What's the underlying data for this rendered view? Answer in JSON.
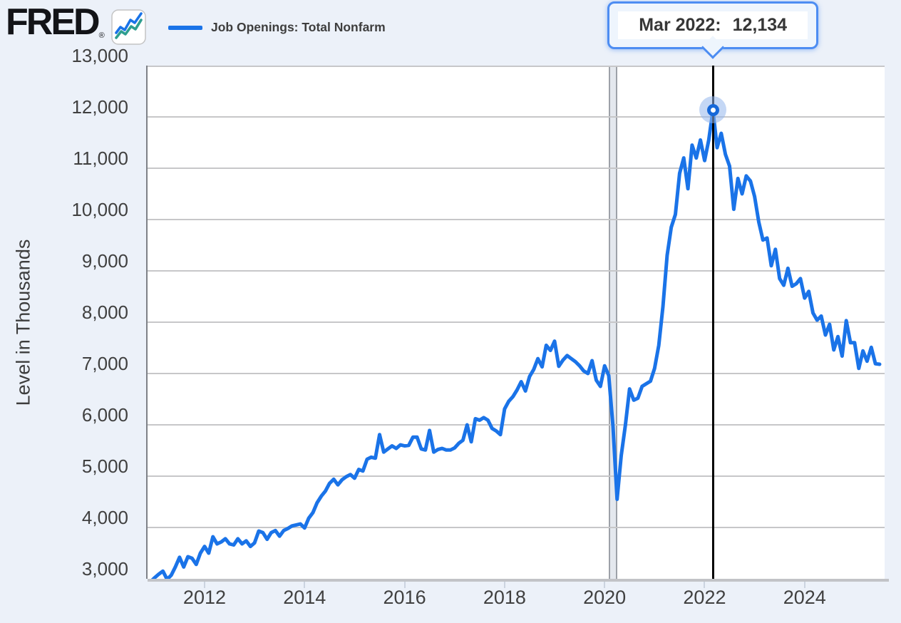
{
  "header": {
    "brand": "FRED",
    "registered_mark": "®",
    "logo_icon": "line-chart-icon",
    "legend": {
      "label": "Job Openings: Total Nonfarm",
      "color": "#1a73e8"
    }
  },
  "tooltip": {
    "date_label": "Mar 2022:",
    "value": "12,134"
  },
  "colors": {
    "background": "#ecf1f9",
    "plot_background": "#ffffff",
    "gridline": "#c7c7c9",
    "axis_line": "#c2c3c7",
    "axis_dark": "#7e8187",
    "series_line": "#1a73e8",
    "logo_icon_teal": "#2e9e8f",
    "recession_fill": "#e4e8ee",
    "recession_edge": "#9da1a8",
    "cursor_line": "#000000",
    "tooltip_border": "#4d8df2",
    "marker_halo": "rgba(147,183,236,0.55)",
    "marker_dot": "#1668d9",
    "label_text": "#404040"
  },
  "chart_data": {
    "type": "line",
    "title": "Job Openings: Total Nonfarm",
    "ylabel": "Level in Thousands",
    "units": "thousands of job openings",
    "frequency": "monthly",
    "grid": true,
    "legend_position": "top-left",
    "ylim": [
      3000,
      13000
    ],
    "y_ticks": [
      3000,
      4000,
      5000,
      6000,
      7000,
      8000,
      9000,
      10000,
      11000,
      12000,
      13000
    ],
    "y_tick_labels": [
      "3,000",
      "4,000",
      "5,000",
      "6,000",
      "7,000",
      "8,000",
      "9,000",
      "10,000",
      "11,000",
      "12,000",
      "13,000"
    ],
    "x_ticks": [
      2012,
      2014,
      2016,
      2018,
      2020,
      2022,
      2024
    ],
    "x_range_decimal_years": [
      2010.86,
      2025.6
    ],
    "start_month": "2010-12",
    "end_month": "2025-07",
    "recession_band": {
      "start": "2020-02",
      "end": "2020-04"
    },
    "highlight": {
      "month": "2022-03",
      "label": "Mar 2022:",
      "value": 12134,
      "value_display": "12,134"
    },
    "series": [
      {
        "name": "Job Openings: Total Nonfarm",
        "color": "#1a73e8",
        "values": [
          2940,
          3020,
          3090,
          3150,
          2990,
          3070,
          3230,
          3420,
          3230,
          3430,
          3400,
          3280,
          3500,
          3630,
          3500,
          3820,
          3680,
          3720,
          3780,
          3680,
          3660,
          3780,
          3680,
          3740,
          3630,
          3700,
          3930,
          3900,
          3770,
          3900,
          3940,
          3830,
          3940,
          3980,
          4030,
          4050,
          4070,
          3990,
          4180,
          4290,
          4480,
          4610,
          4710,
          4860,
          4940,
          4830,
          4930,
          4990,
          5030,
          4960,
          5130,
          5100,
          5330,
          5370,
          5350,
          5810,
          5470,
          5530,
          5590,
          5540,
          5610,
          5590,
          5600,
          5760,
          5760,
          5530,
          5510,
          5890,
          5470,
          5520,
          5540,
          5510,
          5510,
          5550,
          5640,
          5700,
          6000,
          5670,
          6120,
          6090,
          6140,
          6090,
          5930,
          5880,
          5810,
          6310,
          6460,
          6550,
          6680,
          6840,
          6660,
          6940,
          7080,
          7290,
          7130,
          7550,
          7450,
          7630,
          7140,
          7260,
          7350,
          7290,
          7230,
          7150,
          7050,
          7000,
          7250,
          6870,
          6750,
          7150,
          6960,
          5980,
          4550,
          5400,
          6000,
          6700,
          6480,
          6520,
          6750,
          6800,
          6850,
          7100,
          7550,
          8300,
          9300,
          9850,
          10100,
          10900,
          11200,
          10600,
          11450,
          11200,
          11550,
          11150,
          11550,
          12134,
          11400,
          11680,
          11270,
          11040,
          10200,
          10800,
          10500,
          10850,
          10750,
          10450,
          9950,
          9600,
          9640,
          9100,
          9420,
          8850,
          8720,
          9050,
          8700,
          8750,
          8850,
          8470,
          8600,
          8180,
          8040,
          8120,
          7750,
          7960,
          7460,
          7720,
          7340,
          8030,
          7600,
          7600,
          7100,
          7440,
          7240,
          7510,
          7190,
          7181
        ]
      }
    ]
  }
}
